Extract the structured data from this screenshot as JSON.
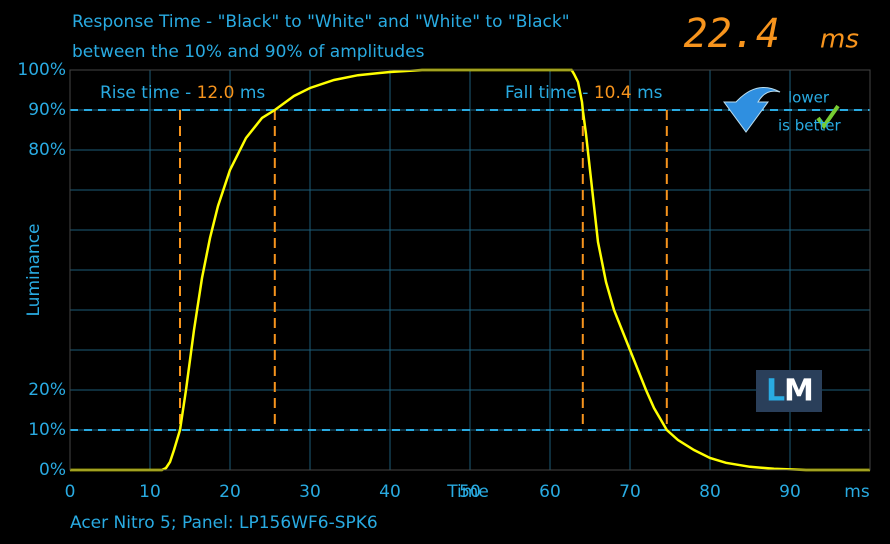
{
  "chart_data": {
    "type": "line",
    "title": "Response Time - \"Black\" to \"White\" and \"White\" to \"Black\"",
    "subtitle": "between the 10% and 90% of amplitudes",
    "result": {
      "value": "22.4",
      "unit": "ms"
    },
    "y_label": "Luminance",
    "x_label": "Time",
    "x_unit": "ms",
    "rise": {
      "label": "Rise time - ",
      "value": "12.0",
      "unit": " ms"
    },
    "fall": {
      "label": "Fall time - ",
      "value": "10.4",
      "unit": " ms"
    },
    "badge": {
      "line1": "lower",
      "line2": "is better"
    },
    "logo": {
      "first": "L",
      "second": "M"
    },
    "footer": "Acer Nitro 5;  Panel: LP156WF6-SPK6",
    "xlim": [
      0,
      100
    ],
    "ylim": [
      0,
      100
    ],
    "xticks": [
      0,
      10,
      20,
      30,
      40,
      50,
      60,
      70,
      80,
      90
    ],
    "yticks": [
      {
        "value": 0,
        "label": "0%"
      },
      {
        "value": 10,
        "label": "10%"
      },
      {
        "value": 20,
        "label": "20%"
      },
      {
        "value": 30,
        "label": null
      },
      {
        "value": 40,
        "label": null
      },
      {
        "value": 50,
        "label": null
      },
      {
        "value": 60,
        "label": null
      },
      {
        "value": 70,
        "label": null
      },
      {
        "value": 80,
        "label": "80%"
      },
      {
        "value": 90,
        "label": "90%"
      },
      {
        "value": 100,
        "label": "100%"
      }
    ],
    "grid": true,
    "threshold_lines": [
      10,
      90
    ],
    "time_markers": [
      13.75,
      25.6,
      64.1,
      74.6
    ],
    "series": [
      {
        "color": "#ffff00",
        "x": [
          0,
          11.5,
          12,
          12.5,
          13,
          13.75,
          14.5,
          15.5,
          16.5,
          17.5,
          18.5,
          20,
          22,
          24,
          25.6,
          28,
          30,
          33,
          36,
          40,
          44,
          62.7,
          63,
          63.5,
          64,
          64.1,
          64.5,
          65,
          66,
          67,
          68,
          69,
          70,
          71,
          72,
          73,
          74.6,
          76,
          78,
          80,
          82,
          85,
          88,
          92,
          100
        ],
        "values": [
          0,
          0,
          0.5,
          2,
          5,
          10,
          20,
          35,
          48,
          58,
          66,
          75,
          83,
          88,
          90,
          93.5,
          95.5,
          97.5,
          98.7,
          99.5,
          100,
          100,
          99,
          97,
          92,
          90,
          84,
          75,
          57,
          47,
          40,
          35,
          30,
          25,
          20,
          15.5,
          10,
          7.5,
          5,
          3,
          1.8,
          0.8,
          0.3,
          0,
          0
        ]
      }
    ]
  }
}
